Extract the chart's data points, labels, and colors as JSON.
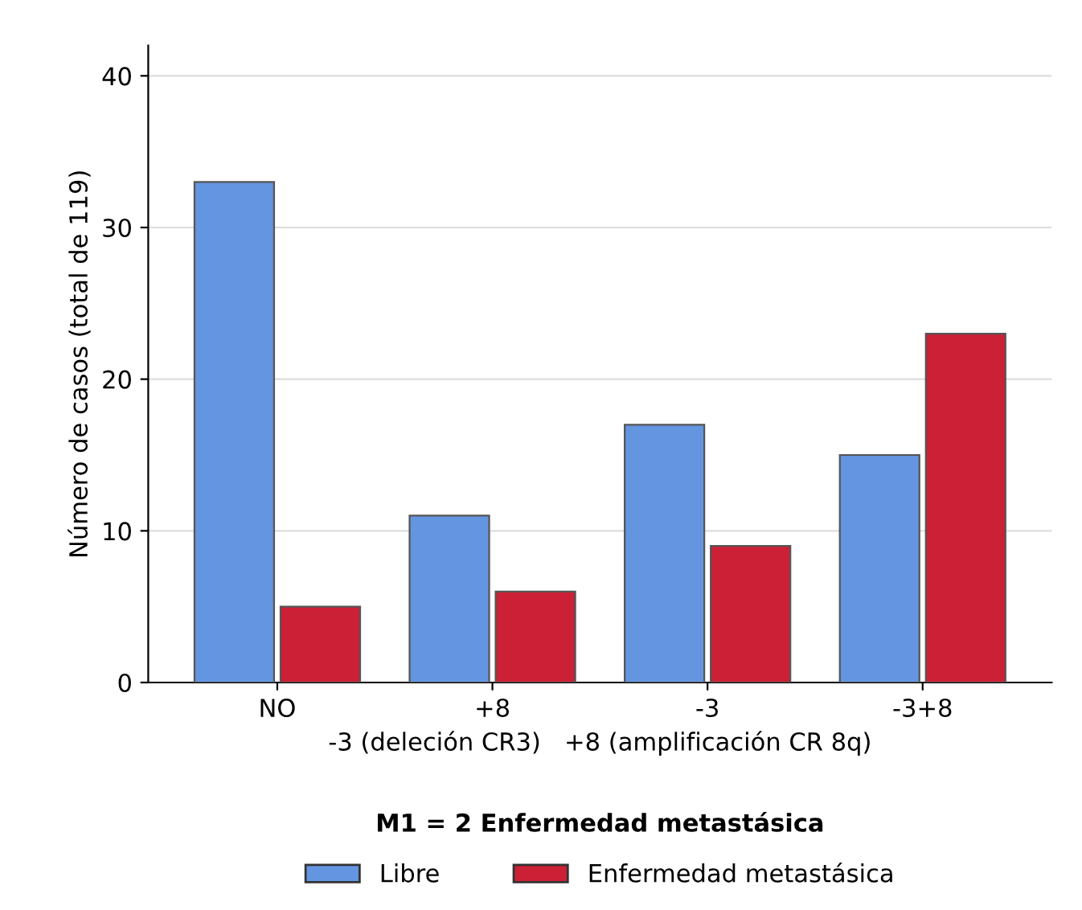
{
  "chart_data": {
    "type": "bar",
    "categories": [
      "NO",
      "+8",
      "-3",
      "-3+8"
    ],
    "series": [
      {
        "name": "Libre",
        "color": "#6495e0",
        "values": [
          33,
          11,
          17,
          15
        ]
      },
      {
        "name": "Enfermedad metastásica",
        "color": "#cc2036",
        "values": [
          5,
          6,
          9,
          23
        ]
      }
    ],
    "xlabel": "-3 (deleción CR3)   +8 (amplificación CR 8q)",
    "ylabel": "Número de casos (total de 119)",
    "legend_title": "M1 = 2 Enfermedad metastásica",
    "ylim": [
      0,
      42
    ],
    "yticks": [
      0,
      10,
      20,
      30,
      40
    ],
    "grid": "y",
    "legend": "bottom"
  }
}
